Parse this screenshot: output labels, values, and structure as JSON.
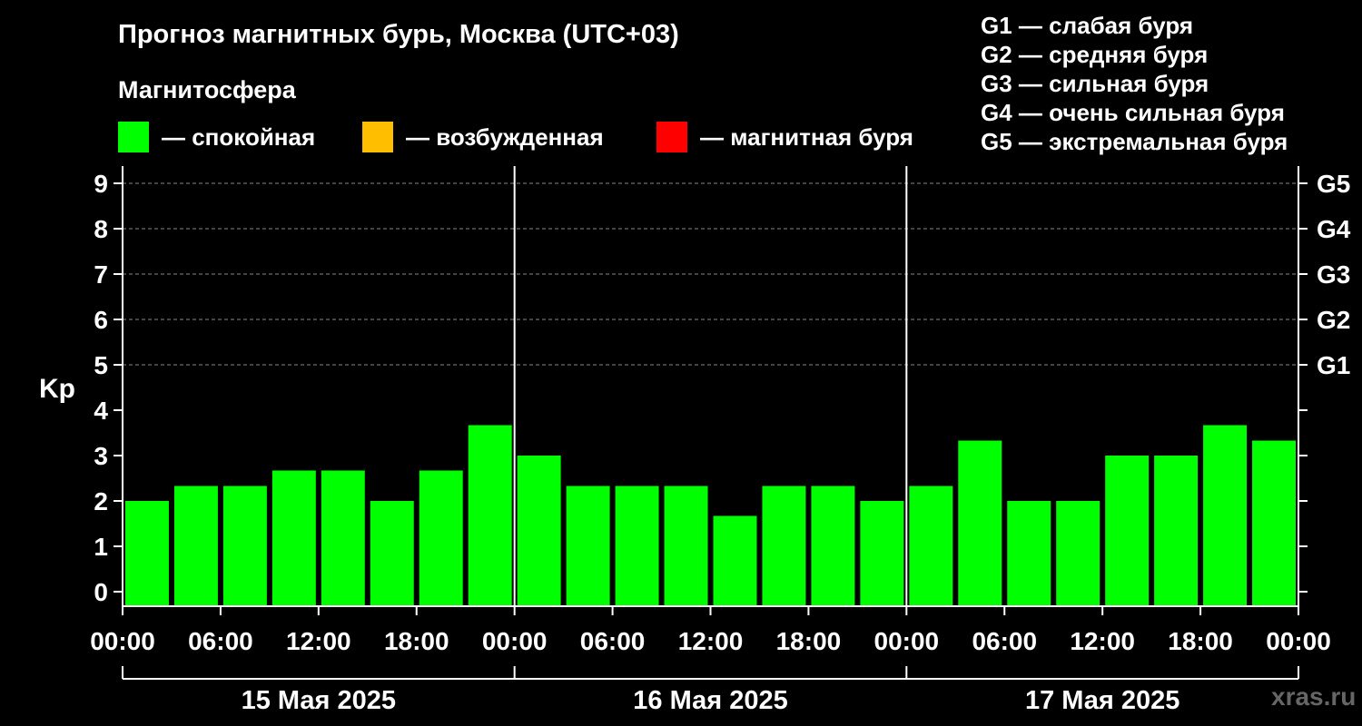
{
  "title": "Прогноз магнитных бурь, Москва (UTC+03)",
  "subtitle": "Магнитосфера",
  "legend": [
    {
      "label": "— спокойная",
      "color": "#00ff00"
    },
    {
      "label": "— возбужденная",
      "color": "#ffbf00"
    },
    {
      "label": "— магнитная буря",
      "color": "#ff0000"
    }
  ],
  "g_legend": [
    "G1 — слабая буря",
    "G2 — средняя буря",
    "G3 — сильная буря",
    "G4 — очень сильная буря",
    "G5 — экстремальная буря"
  ],
  "watermark": "xras.ru",
  "chart_data": {
    "type": "bar",
    "ylabel": "Kp",
    "ylim": [
      0,
      9
    ],
    "yticks": [
      "0",
      "1",
      "2",
      "3",
      "4",
      "5",
      "6",
      "7",
      "8",
      "9"
    ],
    "right_ticks": [
      {
        "value": 5,
        "label": "G1"
      },
      {
        "value": 6,
        "label": "G2"
      },
      {
        "value": 7,
        "label": "G3"
      },
      {
        "value": 8,
        "label": "G4"
      },
      {
        "value": 9,
        "label": "G5"
      }
    ],
    "grid": "horizontal dashed at 5–9",
    "xticks": [
      "00:00",
      "06:00",
      "12:00",
      "18:00",
      "00:00",
      "06:00",
      "12:00",
      "18:00",
      "00:00",
      "06:00",
      "12:00",
      "18:00",
      "00:00"
    ],
    "days": [
      "15 Мая 2025",
      "16 Мая 2025",
      "17 Мая 2025"
    ],
    "bar_color": "#00ff00",
    "values": [
      2.0,
      2.33,
      2.33,
      2.67,
      2.67,
      2.0,
      2.67,
      3.67,
      3.0,
      2.33,
      2.33,
      2.33,
      1.67,
      2.33,
      2.33,
      2.0,
      2.33,
      3.33,
      2.0,
      2.0,
      3.0,
      3.0,
      3.67,
      3.33
    ]
  }
}
